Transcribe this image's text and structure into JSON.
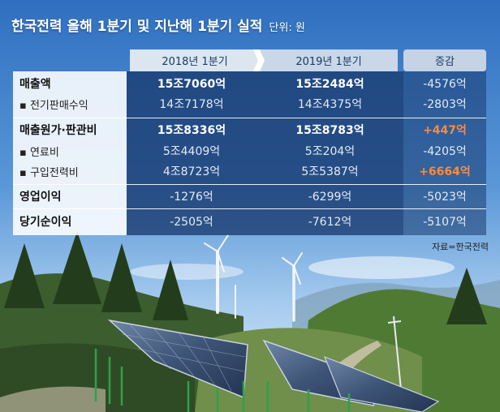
{
  "title": "한국전력 올해 1분기 및 지난해 1분기 실적",
  "unit": "단위: 원",
  "columns": {
    "y2018": "2018년 1분기",
    "y2019": "2019년 1분기",
    "diff": "증감"
  },
  "rows": [
    {
      "label": "매출액",
      "level": "main",
      "y2018": "15조7060억",
      "y2019": "15조2484억",
      "diff": "-4576억"
    },
    {
      "label": "▪ 전기판매수익",
      "level": "sub",
      "y2018": "14조7178억",
      "y2019": "14조4375억",
      "diff": "-2803억"
    },
    {
      "label": "매출원가·판관비",
      "level": "main",
      "y2018": "15조8336억",
      "y2019": "15조8783억",
      "diff": "+447억"
    },
    {
      "label": "▪ 연료비",
      "level": "sub",
      "y2018": "5조4409억",
      "y2019": "5조204억",
      "diff": "-4205억"
    },
    {
      "label": "▪ 구입전력비",
      "level": "sub",
      "y2018": "4조8723억",
      "y2019": "5조5387억",
      "diff": "+6664억"
    },
    {
      "label": "영업이익",
      "level": "main",
      "y2018": "-1276억",
      "y2019": "-6299억",
      "diff": "-5023억"
    },
    {
      "label": "당기순이익",
      "level": "main",
      "y2018": "-2505억",
      "y2019": "-7612억",
      "diff": "-5107억"
    }
  ],
  "source": "자료=한국전력",
  "colors": {
    "positive": "#ff8a3d",
    "panel": "#183a6e",
    "header": "#dbe6f1"
  },
  "chart_data": {
    "type": "table",
    "title": "한국전력 올해 1분기 및 지난해 1분기 실적",
    "unit": "단위: 원",
    "columns": [
      "2018년 1분기",
      "2019년 1분기",
      "증감"
    ],
    "rows": [
      [
        "매출액",
        "15조7060억",
        "15조2484억",
        "-4576억"
      ],
      [
        "전기판매수익",
        "14조7178억",
        "14조4375억",
        "-2803억"
      ],
      [
        "매출원가·판관비",
        "15조8336억",
        "15조8783억",
        "+447억"
      ],
      [
        "연료비",
        "5조4409억",
        "5조204억",
        "-4205억"
      ],
      [
        "구입전력비",
        "4조8723억",
        "5조5387억",
        "+6664억"
      ],
      [
        "영업이익",
        "-1276억",
        "-6299억",
        "-5023억"
      ],
      [
        "당기순이익",
        "-2505억",
        "-7612억",
        "-5107억"
      ]
    ],
    "source": "자료=한국전력"
  }
}
